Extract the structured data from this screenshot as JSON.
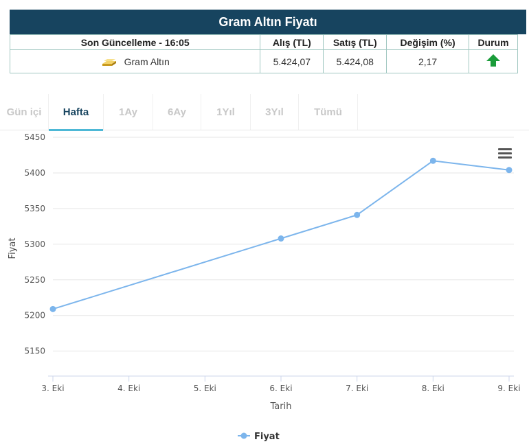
{
  "header": {
    "title": "Gram Altın Fiyatı"
  },
  "table": {
    "columns": [
      "Son Güncelleme - 16:05",
      "Alış (TL)",
      "Satış (TL)",
      "Değişim (%)",
      "Durum"
    ],
    "row": {
      "name": "Gram Altın",
      "alis": "5.424,07",
      "satis": "5.424,08",
      "degisim": "2,17",
      "durum": "up-arrow-icon"
    }
  },
  "tabs": [
    {
      "label": "Gün içi",
      "active": false
    },
    {
      "label": "Hafta",
      "active": true
    },
    {
      "label": "1Ay",
      "active": false
    },
    {
      "label": "6Ay",
      "active": false
    },
    {
      "label": "1Yıl",
      "active": false
    },
    {
      "label": "3Yıl",
      "active": false
    },
    {
      "label": "Tümü",
      "active": false
    }
  ],
  "colors": {
    "header_bg": "#17445f",
    "series": "#7cb5ec",
    "arrow": "#1a9c3a",
    "tab_active": "#17445f",
    "tab_underline": "#4db8d6"
  },
  "chart_data": {
    "type": "line",
    "categories": [
      "3. Eki",
      "4. Eki",
      "5. Eki",
      "6. Eki",
      "7. Eki",
      "8. Eki",
      "9. Eki"
    ],
    "series": [
      {
        "name": "Fiyat",
        "points": [
          {
            "x": "3. Eki",
            "y": 5209
          },
          {
            "x": "6. Eki",
            "y": 5308
          },
          {
            "x": "7. Eki",
            "y": 5341
          },
          {
            "x": "8. Eki",
            "y": 5417
          },
          {
            "x": "9. Eki",
            "y": 5404
          }
        ]
      }
    ],
    "xlabel": "Tarih",
    "ylabel": "Fiyat",
    "yticks": [
      5150,
      5200,
      5250,
      5300,
      5350,
      5400,
      5450
    ],
    "ylim": [
      5115,
      5450
    ],
    "grid": true,
    "legend": "bottom-center"
  }
}
